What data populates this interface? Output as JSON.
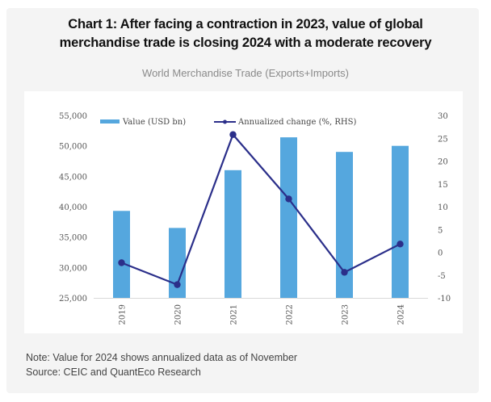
{
  "header": {
    "title_line1": "Chart 1: After facing a contraction in 2023, value of global",
    "title_line2": "merchandise trade is closing 2024 with a moderate recovery",
    "subtitle": "World Merchandise Trade (Exports+Imports)"
  },
  "footer": {
    "note": "Note: Value for 2024 shows annualized data as of November",
    "source": "Source: CEIC and QuantEco Research"
  },
  "colors": {
    "bar": "#55a7de",
    "line": "#2b2f8a",
    "axis": "#d9d9d9"
  },
  "chart_data": {
    "type": "bar",
    "title": "World Merchandise Trade (Exports+Imports)",
    "categories": [
      "2019",
      "2020",
      "2021",
      "2022",
      "2023",
      "2024"
    ],
    "series": [
      {
        "name": "Value (USD bn)",
        "type": "bar",
        "axis": "left",
        "values": [
          39300,
          36500,
          46000,
          51400,
          49000,
          50000
        ]
      },
      {
        "name": "Annualized change (%, RHS)",
        "type": "line",
        "axis": "right",
        "values": [
          -2.3,
          -7.1,
          25.8,
          11.7,
          -4.4,
          1.8
        ]
      }
    ],
    "y_left": {
      "ylim": [
        25000,
        55000
      ],
      "ticks": [
        25000,
        30000,
        35000,
        40000,
        45000,
        50000,
        55000
      ],
      "tick_labels": [
        "25,000",
        "30,000",
        "35,000",
        "40,000",
        "45,000",
        "50,000",
        "55,000"
      ]
    },
    "y_right": {
      "ylim": [
        -10,
        30
      ],
      "ticks": [
        -10,
        -5,
        0,
        5,
        10,
        15,
        20,
        25,
        30
      ],
      "tick_labels": [
        "-10",
        "-5",
        "0",
        "5",
        "10",
        "15",
        "20",
        "25",
        "30"
      ]
    },
    "xlabel": "",
    "ylabel": "",
    "grid": false,
    "legend_position": "top",
    "x_tick_rotation": "vertical"
  }
}
